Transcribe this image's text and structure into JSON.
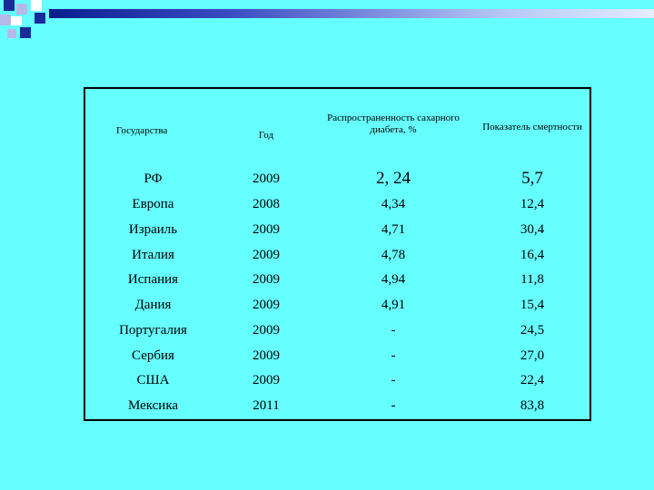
{
  "table": {
    "headers": [
      "Государства",
      "Год",
      "Распространенность сахарного диабета, %",
      "Показатель смертности"
    ],
    "rows": [
      [
        "РФ",
        "2009",
        "2, 24",
        "5,7"
      ],
      [
        "Европа",
        "2008",
        "4,34",
        "12,4"
      ],
      [
        "Израиль",
        "2009",
        "4,71",
        "30,4"
      ],
      [
        "Италия",
        "2009",
        "4,78",
        "16,4"
      ],
      [
        "Испания",
        "2009",
        "4,94",
        "11,8"
      ],
      [
        "Дания",
        "2009",
        "4,91",
        "15,4"
      ],
      [
        "Португалия",
        "2009",
        "-",
        "24,5"
      ],
      [
        "Сербия",
        "2009",
        "-",
        "27,0"
      ],
      [
        "США",
        "2009",
        "-",
        "22,4"
      ],
      [
        "Мексика",
        "2011",
        "-",
        "83,8"
      ]
    ]
  },
  "colors": {
    "background": "#66FFFF",
    "accent_dark": "#1B2A9A",
    "accent_light": "#B4B9E8"
  }
}
